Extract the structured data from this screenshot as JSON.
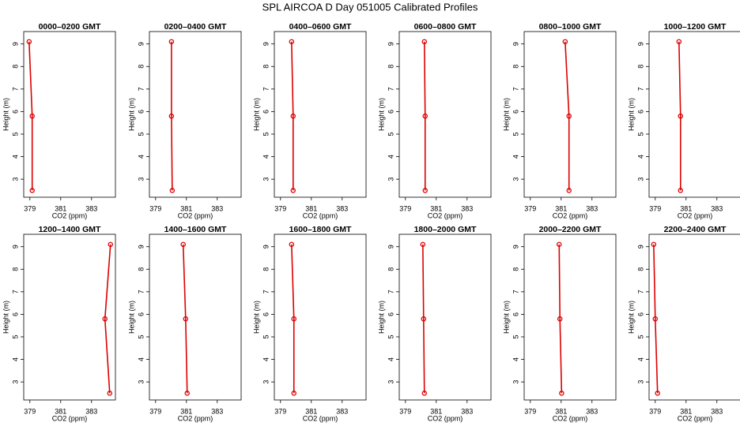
{
  "title": "SPL AIRCOA D  Day 051005  Calibrated Profiles",
  "chart_data": [
    {
      "type": "line",
      "title": "0000–0200 GMT",
      "x_label": "CO2 (ppm)",
      "y_label": "Height (m)",
      "x": [
        378.95,
        379.15,
        379.15
      ],
      "y": [
        9.1,
        5.8,
        2.5
      ],
      "xlim": [
        378.6,
        384.55
      ],
      "ylim": [
        2.2,
        9.55
      ],
      "xticks": [
        379,
        381,
        383
      ],
      "yticks": [
        3,
        4,
        5,
        6,
        7,
        8,
        9
      ],
      "color": "#dd0000"
    },
    {
      "type": "line",
      "title": "0200–0400 GMT",
      "x_label": "CO2 (ppm)",
      "y_label": "Height (m)",
      "x": [
        380.03,
        380.03,
        380.08
      ],
      "y": [
        9.1,
        5.8,
        2.5
      ],
      "xlim": [
        378.6,
        384.55
      ],
      "ylim": [
        2.2,
        9.55
      ],
      "xticks": [
        379,
        381,
        383
      ],
      "yticks": [
        3,
        4,
        5,
        6,
        7,
        8,
        9
      ],
      "color": "#dd0000"
    },
    {
      "type": "line",
      "title": "0400–0600 GMT",
      "x_label": "CO2 (ppm)",
      "y_label": "Height (m)",
      "x": [
        379.72,
        379.82,
        379.82
      ],
      "y": [
        9.1,
        5.8,
        2.5
      ],
      "xlim": [
        378.6,
        384.55
      ],
      "ylim": [
        2.2,
        9.55
      ],
      "xticks": [
        379,
        381,
        383
      ],
      "yticks": [
        3,
        4,
        5,
        6,
        7,
        8,
        9
      ],
      "color": "#dd0000"
    },
    {
      "type": "line",
      "title": "0600–0800 GMT",
      "x_label": "CO2 (ppm)",
      "y_label": "Height (m)",
      "x": [
        380.23,
        380.28,
        380.28
      ],
      "y": [
        9.1,
        5.8,
        2.5
      ],
      "xlim": [
        378.6,
        384.55
      ],
      "ylim": [
        2.2,
        9.55
      ],
      "xticks": [
        379,
        381,
        383
      ],
      "yticks": [
        3,
        4,
        5,
        6,
        7,
        8,
        9
      ],
      "color": "#dd0000"
    },
    {
      "type": "line",
      "title": "0800–1000 GMT",
      "x_label": "CO2 (ppm)",
      "y_label": "Height (m)",
      "x": [
        381.26,
        381.51,
        381.51
      ],
      "y": [
        9.1,
        5.8,
        2.5
      ],
      "xlim": [
        378.6,
        384.55
      ],
      "ylim": [
        2.2,
        9.55
      ],
      "xticks": [
        379,
        381,
        383
      ],
      "yticks": [
        3,
        4,
        5,
        6,
        7,
        8,
        9
      ],
      "color": "#dd0000"
    },
    {
      "type": "line",
      "title": "1000–1200 GMT",
      "x_label": "CO2 (ppm)",
      "y_label": "Height (m)",
      "x": [
        380.54,
        380.64,
        380.64
      ],
      "y": [
        9.1,
        5.8,
        2.5
      ],
      "xlim": [
        378.6,
        384.55
      ],
      "ylim": [
        2.2,
        9.55
      ],
      "xticks": [
        379,
        381,
        383
      ],
      "yticks": [
        3,
        4,
        5,
        6,
        7,
        8,
        9
      ],
      "color": "#dd0000"
    },
    {
      "type": "line",
      "title": "1200–1400 GMT",
      "x_label": "CO2 (ppm)",
      "y_label": "Height (m)",
      "x": [
        384.23,
        383.87,
        384.18
      ],
      "y": [
        9.1,
        5.8,
        2.5
      ],
      "xlim": [
        378.6,
        384.55
      ],
      "ylim": [
        2.2,
        9.55
      ],
      "xticks": [
        379,
        381,
        383
      ],
      "yticks": [
        3,
        4,
        5,
        6,
        7,
        8,
        9
      ],
      "color": "#dd0000"
    },
    {
      "type": "line",
      "title": "1400–1600 GMT",
      "x_label": "CO2 (ppm)",
      "y_label": "Height (m)",
      "x": [
        380.79,
        380.95,
        381.05
      ],
      "y": [
        9.1,
        5.8,
        2.5
      ],
      "xlim": [
        378.6,
        384.55
      ],
      "ylim": [
        2.2,
        9.55
      ],
      "xticks": [
        379,
        381,
        383
      ],
      "yticks": [
        3,
        4,
        5,
        6,
        7,
        8,
        9
      ],
      "color": "#dd0000"
    },
    {
      "type": "line",
      "title": "1600–1800 GMT",
      "x_label": "CO2 (ppm)",
      "y_label": "Height (m)",
      "x": [
        379.72,
        379.87,
        379.87
      ],
      "y": [
        9.1,
        5.8,
        2.5
      ],
      "xlim": [
        378.6,
        384.55
      ],
      "ylim": [
        2.2,
        9.55
      ],
      "xticks": [
        379,
        381,
        383
      ],
      "yticks": [
        3,
        4,
        5,
        6,
        7,
        8,
        9
      ],
      "color": "#dd0000"
    },
    {
      "type": "line",
      "title": "1800–2000 GMT",
      "x_label": "CO2 (ppm)",
      "y_label": "Height (m)",
      "x": [
        380.13,
        380.18,
        380.23
      ],
      "y": [
        9.1,
        5.8,
        2.5
      ],
      "xlim": [
        378.6,
        384.55
      ],
      "ylim": [
        2.2,
        9.55
      ],
      "xticks": [
        379,
        381,
        383
      ],
      "yticks": [
        3,
        4,
        5,
        6,
        7,
        8,
        9
      ],
      "color": "#dd0000"
    },
    {
      "type": "line",
      "title": "2000–2200 GMT",
      "x_label": "CO2 (ppm)",
      "y_label": "Height (m)",
      "x": [
        380.87,
        380.92,
        381.03
      ],
      "y": [
        9.1,
        5.8,
        2.5
      ],
      "xlim": [
        378.6,
        384.55
      ],
      "ylim": [
        2.2,
        9.55
      ],
      "xticks": [
        379,
        381,
        383
      ],
      "yticks": [
        3,
        4,
        5,
        6,
        7,
        8,
        9
      ],
      "color": "#dd0000"
    },
    {
      "type": "line",
      "title": "2200–2400 GMT",
      "x_label": "CO2 (ppm)",
      "y_label": "Height (m)",
      "x": [
        378.9,
        379.0,
        379.15
      ],
      "y": [
        9.1,
        5.8,
        2.5
      ],
      "xlim": [
        378.6,
        384.55
      ],
      "ylim": [
        2.2,
        9.55
      ],
      "xticks": [
        379,
        381,
        383
      ],
      "yticks": [
        3,
        4,
        5,
        6,
        7,
        8,
        9
      ],
      "color": "#dd0000"
    }
  ]
}
